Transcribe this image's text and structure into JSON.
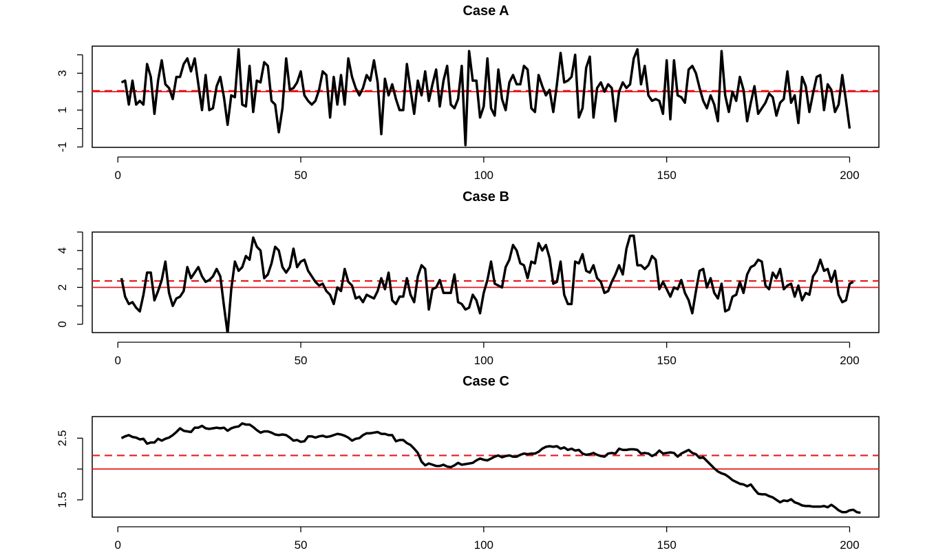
{
  "chart_data": [
    {
      "type": "line",
      "title": "Case A",
      "xlabel": "",
      "ylabel": "",
      "xlim": [
        -7,
        208
      ],
      "ylim": [
        -1.02,
        4.47
      ],
      "xticks": [
        0,
        50,
        100,
        150,
        200
      ],
      "xtick_labels": [
        "0",
        "50",
        "100",
        "150",
        "200"
      ],
      "yticks": [
        -1,
        0,
        1,
        2,
        3,
        4
      ],
      "ytick_labels": [
        "-1",
        "",
        "1",
        "",
        "3",
        ""
      ],
      "hlines": [
        {
          "y": 2.0,
          "style": "solid",
          "color": "#e8191e"
        },
        {
          "y": 2.05,
          "style": "dashed",
          "color": "#e8191e"
        }
      ],
      "series": [
        {
          "values": [
            2.5,
            2.6,
            1.3,
            2.6,
            1.3,
            1.5,
            1.3,
            3.5,
            2.8,
            0.8,
            2.6,
            3.7,
            2.4,
            2.2,
            1.6,
            2.8,
            2.8,
            3.5,
            3.8,
            3.1,
            3.8,
            2.4,
            1.0,
            2.9,
            1.0,
            1.1,
            2.3,
            2.8,
            1.7,
            0.2,
            1.8,
            1.7,
            4.3,
            1.3,
            1.2,
            3.4,
            0.9,
            2.6,
            2.5,
            3.6,
            3.4,
            1.5,
            1.3,
            -0.2,
            1.1,
            3.8,
            2.1,
            2.2,
            2.5,
            3.1,
            1.8,
            1.5,
            1.3,
            1.5,
            2.1,
            3.1,
            2.9,
            0.6,
            2.8,
            1.3,
            2.9,
            1.3,
            3.8,
            2.8,
            2.2,
            1.8,
            2.2,
            2.9,
            2.6,
            3.7,
            2.5,
            -0.3,
            2.7,
            1.8,
            2.4,
            1.6,
            1.0,
            1.0,
            3.5,
            2.1,
            0.8,
            2.6,
            1.8,
            3.1,
            1.5,
            2.4,
            3.2,
            1.2,
            2.6,
            3.4,
            1.3,
            1.1,
            1.6,
            3.4,
            -0.9,
            4.2,
            2.6,
            2.6,
            0.6,
            1.2,
            3.8,
            1.1,
            0.7,
            3.2,
            1.6,
            1.0,
            2.5,
            2.9,
            2.4,
            2.4,
            3.4,
            3.2,
            1.1,
            0.9,
            2.9,
            2.3,
            1.8,
            2.1,
            0.9,
            2.4,
            4.1,
            2.5,
            2.6,
            2.8,
            4.0,
            0.6,
            1.1,
            3.3,
            3.9,
            0.6,
            2.2,
            2.5,
            2.0,
            2.4,
            2.2,
            0.4,
            2.0,
            2.5,
            2.2,
            2.4,
            3.8,
            4.3,
            2.4,
            3.4,
            1.8,
            1.5,
            1.6,
            1.5,
            0.8,
            3.7,
            0.5,
            3.7,
            1.8,
            1.7,
            1.4,
            3.2,
            3.4,
            3.0,
            2.2,
            1.5,
            1.1,
            1.8,
            1.3,
            0.4,
            4.2,
            1.8,
            0.9,
            2.0,
            1.5,
            2.8,
            2.1,
            0.4,
            1.4,
            2.3,
            0.8,
            1.1,
            1.4,
            1.9,
            1.7,
            0.7,
            1.4,
            1.6,
            3.1,
            1.4,
            1.8,
            0.3,
            2.8,
            2.3,
            0.9,
            1.9,
            2.8,
            2.9,
            1.0,
            2.4,
            2.1,
            0.9,
            1.3,
            2.9,
            1.5,
            0.0
          ]
        }
      ]
    },
    {
      "type": "line",
      "title": "Case B",
      "xlabel": "",
      "ylabel": "",
      "xlim": [
        -7,
        208
      ],
      "ylim": [
        -0.45,
        5.0
      ],
      "xticks": [
        0,
        50,
        100,
        150,
        200
      ],
      "xtick_labels": [
        "0",
        "50",
        "100",
        "150",
        "200"
      ],
      "yticks": [
        0,
        1,
        2,
        3,
        4,
        5
      ],
      "ytick_labels": [
        "0",
        "",
        "2",
        "",
        "4",
        ""
      ],
      "hlines": [
        {
          "y": 2.0,
          "style": "solid",
          "color": "#e8191e"
        },
        {
          "y": 2.35,
          "style": "dashed",
          "color": "#e8191e"
        }
      ],
      "series": [
        {
          "values": [
            2.5,
            1.5,
            1.1,
            1.2,
            0.9,
            0.7,
            1.6,
            2.8,
            2.8,
            1.3,
            1.8,
            2.4,
            3.4,
            1.7,
            1.0,
            1.4,
            1.5,
            1.8,
            3.1,
            2.5,
            2.8,
            3.1,
            2.6,
            2.3,
            2.4,
            2.6,
            3.0,
            2.6,
            1.0,
            -0.5,
            1.9,
            3.4,
            2.9,
            3.1,
            3.7,
            3.5,
            4.7,
            4.2,
            4.0,
            2.5,
            2.7,
            3.3,
            4.2,
            4.0,
            3.1,
            2.8,
            3.1,
            4.1,
            3.1,
            3.4,
            3.5,
            2.9,
            2.6,
            2.3,
            2.1,
            2.2,
            1.8,
            1.6,
            1.1,
            2.0,
            1.8,
            3.0,
            2.3,
            2.1,
            1.4,
            1.5,
            1.2,
            1.6,
            1.5,
            1.4,
            1.8,
            2.5,
            1.9,
            2.8,
            1.3,
            1.1,
            1.5,
            1.5,
            2.5,
            1.6,
            1.2,
            2.6,
            3.2,
            3.0,
            0.8,
            1.9,
            2.0,
            2.4,
            1.7,
            1.7,
            1.7,
            2.7,
            1.2,
            1.1,
            0.8,
            0.9,
            1.6,
            1.3,
            0.6,
            1.7,
            2.4,
            3.4,
            2.2,
            2.1,
            2.0,
            3.1,
            3.5,
            4.3,
            4.0,
            3.3,
            3.2,
            2.5,
            3.4,
            3.3,
            4.4,
            4.0,
            4.3,
            3.6,
            2.2,
            2.3,
            3.4,
            1.6,
            1.1,
            1.1,
            3.4,
            3.3,
            3.8,
            2.9,
            2.8,
            3.2,
            2.5,
            2.3,
            1.7,
            1.8,
            2.3,
            2.7,
            3.2,
            2.7,
            4.1,
            4.8,
            4.8,
            3.2,
            3.2,
            3.0,
            3.2,
            3.7,
            3.5,
            1.9,
            2.3,
            1.9,
            1.5,
            2.0,
            1.9,
            2.4,
            1.7,
            1.3,
            0.6,
            1.8,
            2.9,
            3.0,
            2.0,
            2.5,
            1.7,
            1.4,
            2.2,
            0.7,
            0.8,
            1.5,
            1.6,
            2.3,
            1.7,
            2.7,
            3.1,
            3.2,
            3.5,
            3.4,
            2.1,
            1.9,
            2.8,
            2.5,
            3.0,
            1.9,
            2.1,
            2.2,
            1.5,
            2.1,
            1.3,
            1.7,
            1.6,
            2.6,
            2.9,
            3.5,
            2.9,
            3.0,
            2.3,
            2.9,
            1.6,
            1.2,
            1.3,
            2.2,
            2.3
          ]
        }
      ]
    },
    {
      "type": "line",
      "title": "Case C",
      "xlabel": "",
      "ylabel": "",
      "xlim": [
        -7,
        208
      ],
      "ylim": [
        1.22,
        2.85
      ],
      "xticks": [
        0,
        50,
        100,
        150,
        200
      ],
      "xtick_labels": [
        "0",
        "50",
        "100",
        "150",
        "200"
      ],
      "yticks": [
        1.5,
        2.0,
        2.5
      ],
      "ytick_labels": [
        "1.5",
        "",
        "2.5"
      ],
      "hlines": [
        {
          "y": 2.0,
          "style": "solid",
          "color": "#e8191e"
        },
        {
          "y": 2.22,
          "style": "dashed",
          "color": "#e8191e"
        }
      ],
      "series": [
        {
          "values": [
            2.5,
            2.53,
            2.55,
            2.52,
            2.51,
            2.48,
            2.49,
            2.41,
            2.43,
            2.43,
            2.49,
            2.46,
            2.49,
            2.51,
            2.55,
            2.6,
            2.66,
            2.62,
            2.61,
            2.6,
            2.67,
            2.67,
            2.7,
            2.66,
            2.65,
            2.66,
            2.67,
            2.66,
            2.67,
            2.62,
            2.66,
            2.68,
            2.69,
            2.74,
            2.72,
            2.72,
            2.68,
            2.63,
            2.59,
            2.61,
            2.61,
            2.59,
            2.56,
            2.55,
            2.56,
            2.55,
            2.51,
            2.46,
            2.47,
            2.44,
            2.45,
            2.53,
            2.53,
            2.51,
            2.53,
            2.54,
            2.52,
            2.53,
            2.55,
            2.57,
            2.56,
            2.54,
            2.51,
            2.46,
            2.49,
            2.5,
            2.55,
            2.58,
            2.58,
            2.59,
            2.6,
            2.57,
            2.57,
            2.55,
            2.55,
            2.45,
            2.47,
            2.47,
            2.42,
            2.39,
            2.33,
            2.26,
            2.12,
            2.06,
            2.09,
            2.07,
            2.05,
            2.05,
            2.07,
            2.04,
            2.03,
            2.06,
            2.1,
            2.07,
            2.08,
            2.09,
            2.1,
            2.14,
            2.17,
            2.15,
            2.14,
            2.17,
            2.2,
            2.22,
            2.19,
            2.21,
            2.22,
            2.2,
            2.2,
            2.23,
            2.25,
            2.24,
            2.25,
            2.25,
            2.28,
            2.33,
            2.36,
            2.37,
            2.36,
            2.37,
            2.33,
            2.35,
            2.31,
            2.33,
            2.3,
            2.31,
            2.25,
            2.23,
            2.24,
            2.26,
            2.23,
            2.21,
            2.2,
            2.25,
            2.26,
            2.25,
            2.33,
            2.31,
            2.31,
            2.32,
            2.32,
            2.31,
            2.25,
            2.26,
            2.25,
            2.21,
            2.24,
            2.3,
            2.25,
            2.26,
            2.27,
            2.26,
            2.2,
            2.25,
            2.28,
            2.31,
            2.26,
            2.24,
            2.18,
            2.19,
            2.13,
            2.07,
            2.01,
            1.96,
            1.93,
            1.91,
            1.87,
            1.82,
            1.79,
            1.76,
            1.75,
            1.72,
            1.75,
            1.67,
            1.6,
            1.59,
            1.59,
            1.56,
            1.54,
            1.5,
            1.46,
            1.49,
            1.48,
            1.51,
            1.46,
            1.44,
            1.41,
            1.4,
            1.4,
            1.39,
            1.39,
            1.39,
            1.4,
            1.38,
            1.42,
            1.38,
            1.33,
            1.3,
            1.3,
            1.33,
            1.34,
            1.3,
            1.29
          ]
        }
      ]
    }
  ]
}
